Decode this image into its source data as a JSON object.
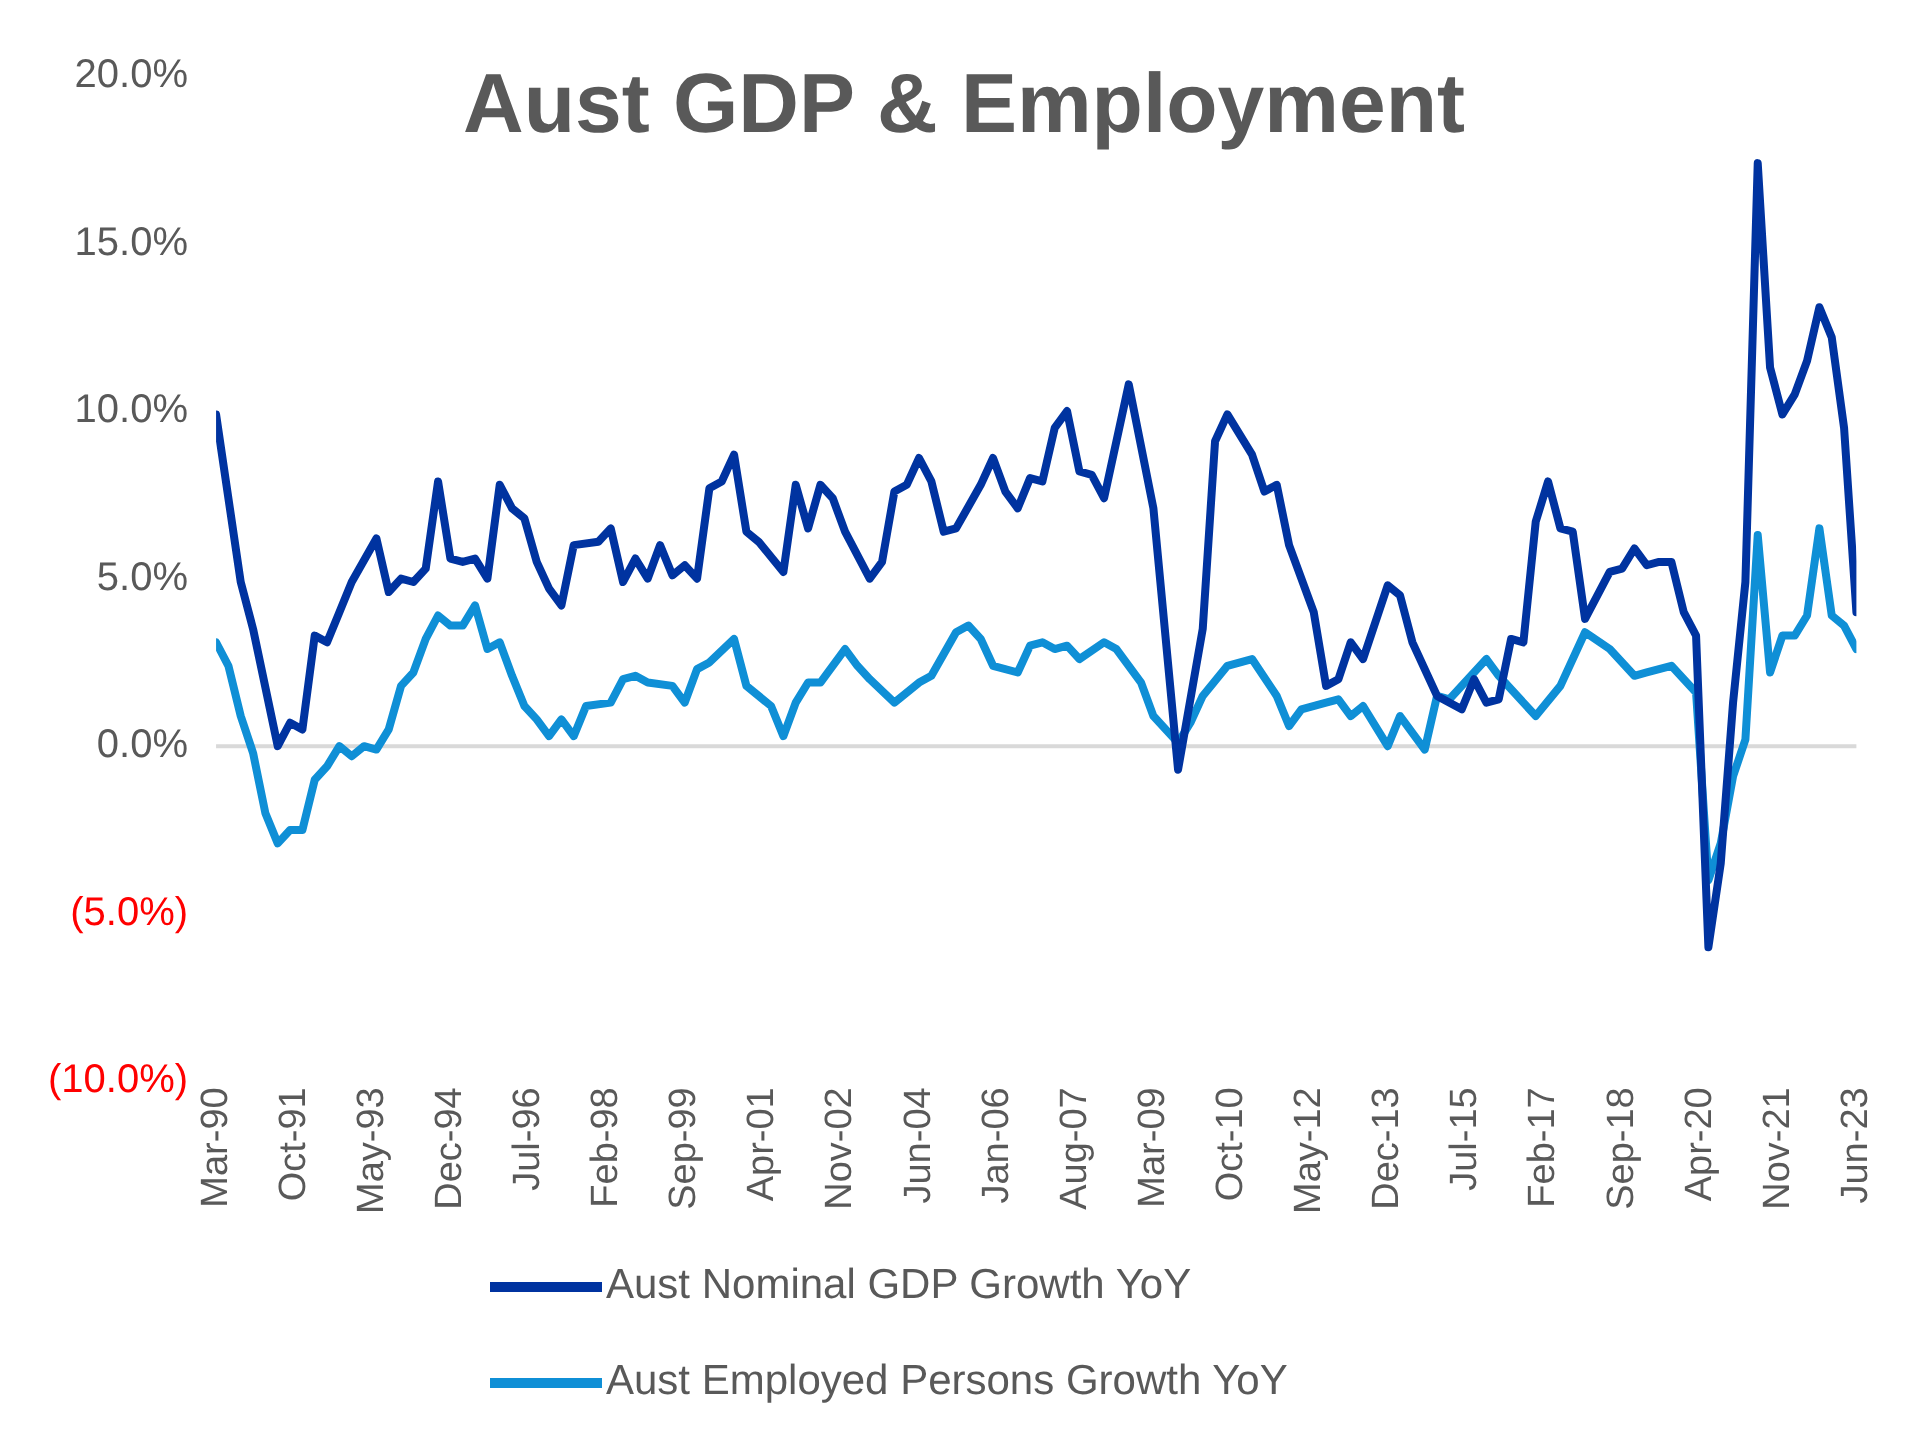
{
  "chart_data": {
    "type": "line",
    "title": "Aust GDP & Employment",
    "series": [
      {
        "name": "Aust Nominal GDP Growth YoY",
        "color": "#0033a0",
        "x": [
          "1990-03",
          "1990-09",
          "1990-12",
          "1991-06",
          "1991-09",
          "1991-12",
          "1992-03",
          "1992-06",
          "1992-09",
          "1992-12",
          "1993-06",
          "1993-09",
          "1993-12",
          "1994-03",
          "1994-06",
          "1994-09",
          "1994-12",
          "1995-03",
          "1995-06",
          "1995-09",
          "1995-12",
          "1996-03",
          "1996-06",
          "1996-09",
          "1996-12",
          "1997-03",
          "1997-06",
          "1997-12",
          "1998-03",
          "1998-06",
          "1998-09",
          "1998-12",
          "1999-03",
          "1999-06",
          "1999-09",
          "1999-12",
          "2000-03",
          "2000-06",
          "2000-09",
          "2000-12",
          "2001-03",
          "2001-09",
          "2001-12",
          "2002-03",
          "2002-06",
          "2002-09",
          "2002-12",
          "2003-06",
          "2003-09",
          "2003-12",
          "2004-03",
          "2004-06",
          "2004-09",
          "2004-12",
          "2005-03",
          "2005-09",
          "2005-12",
          "2006-03",
          "2006-06",
          "2006-09",
          "2006-12",
          "2007-03",
          "2007-06",
          "2007-09",
          "2007-12",
          "2008-03",
          "2008-09",
          "2009-03",
          "2009-09",
          "2010-03",
          "2010-06",
          "2010-09",
          "2011-03",
          "2011-06",
          "2011-09",
          "2011-12",
          "2012-06",
          "2012-09",
          "2012-12",
          "2013-03",
          "2013-06",
          "2013-12",
          "2014-03",
          "2014-06",
          "2014-12",
          "2015-06",
          "2015-09",
          "2015-12",
          "2016-03",
          "2016-06",
          "2016-09",
          "2016-12",
          "2017-03",
          "2017-06",
          "2017-09",
          "2017-12",
          "2018-06",
          "2018-09",
          "2018-12",
          "2019-03",
          "2019-06",
          "2019-09",
          "2019-12",
          "2020-03",
          "2020-06",
          "2020-09",
          "2020-12",
          "2021-03",
          "2021-06",
          "2021-09",
          "2021-12",
          "2022-03",
          "2022-06",
          "2022-09",
          "2022-12",
          "2023-03",
          "2023-06"
        ],
        "values": [
          9.9,
          4.9,
          3.5,
          0.0,
          0.7,
          0.5,
          3.3,
          3.1,
          4.0,
          4.9,
          6.2,
          4.6,
          5.0,
          4.9,
          5.3,
          7.9,
          5.6,
          5.5,
          5.6,
          5.0,
          7.8,
          7.1,
          6.8,
          5.5,
          4.7,
          4.2,
          6.0,
          6.1,
          6.5,
          4.9,
          5.6,
          5.0,
          6.0,
          5.1,
          5.4,
          5.0,
          7.7,
          7.9,
          8.7,
          6.4,
          6.1,
          5.2,
          7.8,
          6.5,
          7.8,
          7.4,
          6.4,
          5.0,
          5.5,
          7.6,
          7.8,
          8.6,
          7.9,
          6.4,
          6.5,
          7.8,
          8.6,
          7.6,
          7.1,
          8.0,
          7.9,
          9.5,
          10.0,
          8.2,
          8.1,
          7.4,
          10.8,
          7.1,
          -0.7,
          3.5,
          9.1,
          9.9,
          8.7,
          7.6,
          7.8,
          6.0,
          4.0,
          1.8,
          2.0,
          3.1,
          2.6,
          4.8,
          4.5,
          3.1,
          1.5,
          1.1,
          2.0,
          1.3,
          1.4,
          3.2,
          3.1,
          6.7,
          7.9,
          6.5,
          6.4,
          3.8,
          5.2,
          5.3,
          5.9,
          5.4,
          5.5,
          5.5,
          4.0,
          3.3,
          -6.0,
          -3.5,
          1.3,
          4.9,
          17.4,
          11.3,
          9.9,
          10.5,
          11.5,
          13.1,
          12.2,
          9.5,
          4.0
        ]
      },
      {
        "name": "Aust Employed Persons Growth YoY",
        "color": "#0f8fd6",
        "x": [
          "1990-03",
          "1990-06",
          "1990-09",
          "1990-12",
          "1991-03",
          "1991-06",
          "1991-09",
          "1991-12",
          "1992-03",
          "1992-06",
          "1992-09",
          "1992-12",
          "1993-03",
          "1993-06",
          "1993-09",
          "1993-12",
          "1994-03",
          "1994-06",
          "1994-09",
          "1994-12",
          "1995-03",
          "1995-06",
          "1995-09",
          "1995-12",
          "1996-03",
          "1996-06",
          "1996-09",
          "1996-12",
          "1997-03",
          "1997-06",
          "1997-09",
          "1998-03",
          "1998-06",
          "1998-09",
          "1998-12",
          "1999-06",
          "1999-09",
          "1999-12",
          "2000-03",
          "2000-09",
          "2000-12",
          "2001-06",
          "2001-09",
          "2001-12",
          "2002-03",
          "2002-06",
          "2002-12",
          "2003-03",
          "2003-06",
          "2003-12",
          "2004-06",
          "2004-09",
          "2005-03",
          "2005-06",
          "2005-09",
          "2005-12",
          "2006-06",
          "2006-09",
          "2006-12",
          "2007-03",
          "2007-06",
          "2007-09",
          "2008-03",
          "2008-06",
          "2008-12",
          "2009-03",
          "2009-09",
          "2009-12",
          "2010-03",
          "2010-09",
          "2011-03",
          "2011-09",
          "2011-12",
          "2012-03",
          "2012-09",
          "2012-12",
          "2013-03",
          "2013-06",
          "2013-12",
          "2014-03",
          "2014-09",
          "2014-12",
          "2015-03",
          "2015-12",
          "2016-03",
          "2016-12",
          "2017-06",
          "2017-12",
          "2018-06",
          "2018-12",
          "2019-03",
          "2019-09",
          "2020-03",
          "2020-06",
          "2020-09",
          "2020-12",
          "2021-03",
          "2021-06",
          "2021-09",
          "2021-12",
          "2022-03",
          "2022-06",
          "2022-09",
          "2022-12",
          "2023-03",
          "2023-06"
        ],
        "values": [
          3.1,
          2.4,
          0.9,
          -0.2,
          -2.0,
          -2.9,
          -2.5,
          -2.5,
          -1.0,
          -0.6,
          0.0,
          -0.3,
          0.0,
          -0.1,
          0.5,
          1.8,
          2.2,
          3.2,
          3.9,
          3.6,
          3.6,
          4.2,
          2.9,
          3.1,
          2.1,
          1.2,
          0.8,
          0.3,
          0.8,
          0.3,
          1.2,
          1.3,
          2.0,
          2.1,
          1.9,
          1.8,
          1.3,
          2.3,
          2.5,
          3.2,
          1.8,
          1.2,
          0.3,
          1.3,
          1.9,
          1.9,
          2.9,
          2.4,
          2.0,
          1.3,
          1.9,
          2.1,
          3.4,
          3.6,
          3.2,
          2.4,
          2.2,
          3.0,
          3.1,
          2.9,
          3.0,
          2.6,
          3.1,
          2.9,
          1.9,
          0.9,
          0.1,
          0.7,
          1.5,
          2.4,
          2.6,
          1.5,
          0.6,
          1.1,
          1.3,
          1.4,
          0.9,
          1.2,
          0.0,
          0.9,
          -0.1,
          1.5,
          1.4,
          2.6,
          2.1,
          0.9,
          1.8,
          3.4,
          2.9,
          2.1,
          2.2,
          2.4,
          1.6,
          -4.0,
          -2.9,
          -0.9,
          0.2,
          6.3,
          2.2,
          3.3,
          3.3,
          3.9,
          6.5,
          3.9,
          3.6,
          2.9
        ]
      }
    ],
    "xlim": [
      "1990-03",
      "2023-06"
    ],
    "xticks": [
      {
        "value": "1990-03",
        "label": "Mar-90"
      },
      {
        "value": "1991-10",
        "label": "Oct-91"
      },
      {
        "value": "1993-05",
        "label": "May-93"
      },
      {
        "value": "1994-12",
        "label": "Dec-94"
      },
      {
        "value": "1996-07",
        "label": "Jul-96"
      },
      {
        "value": "1998-02",
        "label": "Feb-98"
      },
      {
        "value": "1999-09",
        "label": "Sep-99"
      },
      {
        "value": "2001-04",
        "label": "Apr-01"
      },
      {
        "value": "2002-11",
        "label": "Nov-02"
      },
      {
        "value": "2004-06",
        "label": "Jun-04"
      },
      {
        "value": "2006-01",
        "label": "Jan-06"
      },
      {
        "value": "2007-08",
        "label": "Aug-07"
      },
      {
        "value": "2009-03",
        "label": "Mar-09"
      },
      {
        "value": "2010-10",
        "label": "Oct-10"
      },
      {
        "value": "2012-05",
        "label": "May-12"
      },
      {
        "value": "2013-12",
        "label": "Dec-13"
      },
      {
        "value": "2015-07",
        "label": "Jul-15"
      },
      {
        "value": "2017-02",
        "label": "Feb-17"
      },
      {
        "value": "2018-09",
        "label": "Sep-18"
      },
      {
        "value": "2020-04",
        "label": "Apr-20"
      },
      {
        "value": "2021-11",
        "label": "Nov-21"
      },
      {
        "value": "2023-06",
        "label": "Jun-23"
      }
    ],
    "ylim": [
      -10,
      20
    ],
    "yticks": [
      {
        "value": -10,
        "label": "(10.0%)"
      },
      {
        "value": -5,
        "label": "(5.0%)"
      },
      {
        "value": 0,
        "label": "0.0%"
      },
      {
        "value": 5,
        "label": "5.0%"
      },
      {
        "value": 10,
        "label": "10.0%"
      },
      {
        "value": 15,
        "label": "15.0%"
      },
      {
        "value": 20,
        "label": "20.0%"
      }
    ],
    "ref_lines": [
      {
        "axis": "y",
        "value": 0,
        "color": "#d9d9d9"
      }
    ],
    "grid": false,
    "legend": "bottom",
    "marker": "none",
    "line_style": "solid"
  }
}
